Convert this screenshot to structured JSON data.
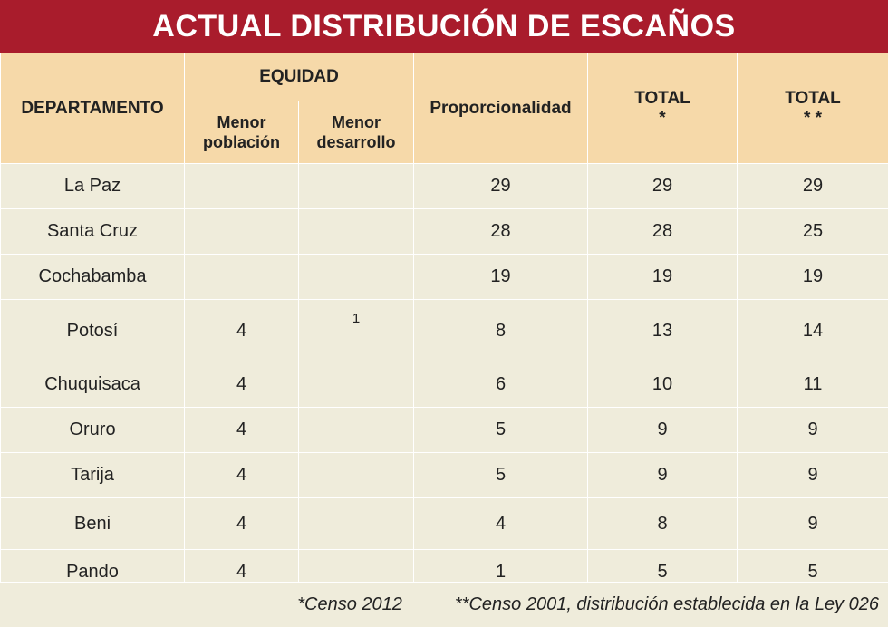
{
  "title": "ACTUAL DISTRIBUCIÓN DE ESCAÑOS",
  "headers": {
    "departamento": "DEPARTAMENTO",
    "equidad": "EQUIDAD",
    "menor_poblacion_1": "Menor",
    "menor_poblacion_2": "población",
    "menor_desarrollo_1": "Menor",
    "menor_desarrollo_2": "desarrollo",
    "proporcionalidad": "Proporcionalidad",
    "total1_label": "TOTAL",
    "total1_mark": "*",
    "total2_label": "TOTAL",
    "total2_mark": "* *"
  },
  "rows": [
    {
      "dep": "La Paz",
      "menor_poblacion": "",
      "menor_desarrollo": "",
      "proporcionalidad": "29",
      "total1": "29",
      "total2": "29"
    },
    {
      "dep": "Santa Cruz",
      "menor_poblacion": "",
      "menor_desarrollo": "",
      "proporcionalidad": "28",
      "total1": "28",
      "total2": "25"
    },
    {
      "dep": "Cochabamba",
      "menor_poblacion": "",
      "menor_desarrollo": "",
      "proporcionalidad": "19",
      "total1": "19",
      "total2": "19"
    },
    {
      "dep": "Potosí",
      "menor_poblacion": "4",
      "menor_desarrollo": "1",
      "proporcionalidad": "8",
      "total1": "13",
      "total2": "14"
    },
    {
      "dep": "Chuquisaca",
      "menor_poblacion": "4",
      "menor_desarrollo": "",
      "proporcionalidad": "6",
      "total1": "10",
      "total2": "11"
    },
    {
      "dep": "Oruro",
      "menor_poblacion": "4",
      "menor_desarrollo": "",
      "proporcionalidad": "5",
      "total1": "9",
      "total2": "9"
    },
    {
      "dep": "Tarija",
      "menor_poblacion": "4",
      "menor_desarrollo": "",
      "proporcionalidad": "5",
      "total1": "9",
      "total2": "9"
    },
    {
      "dep": "Beni",
      "menor_poblacion": "4",
      "menor_desarrollo": "",
      "proporcionalidad": "4",
      "total1": "8",
      "total2": "9"
    },
    {
      "dep": "Pando",
      "menor_poblacion": "4",
      "menor_desarrollo": "",
      "proporcionalidad": "1",
      "total1": "5",
      "total2": "5"
    }
  ],
  "footnotes": {
    "note1": "*Censo 2012",
    "note2": "**Censo 2001, distribución establecida en la Ley 026"
  },
  "colors": {
    "banner": "#a91c2c",
    "header_bg": "#f6d9a9",
    "body_bg": "#efecdb"
  }
}
